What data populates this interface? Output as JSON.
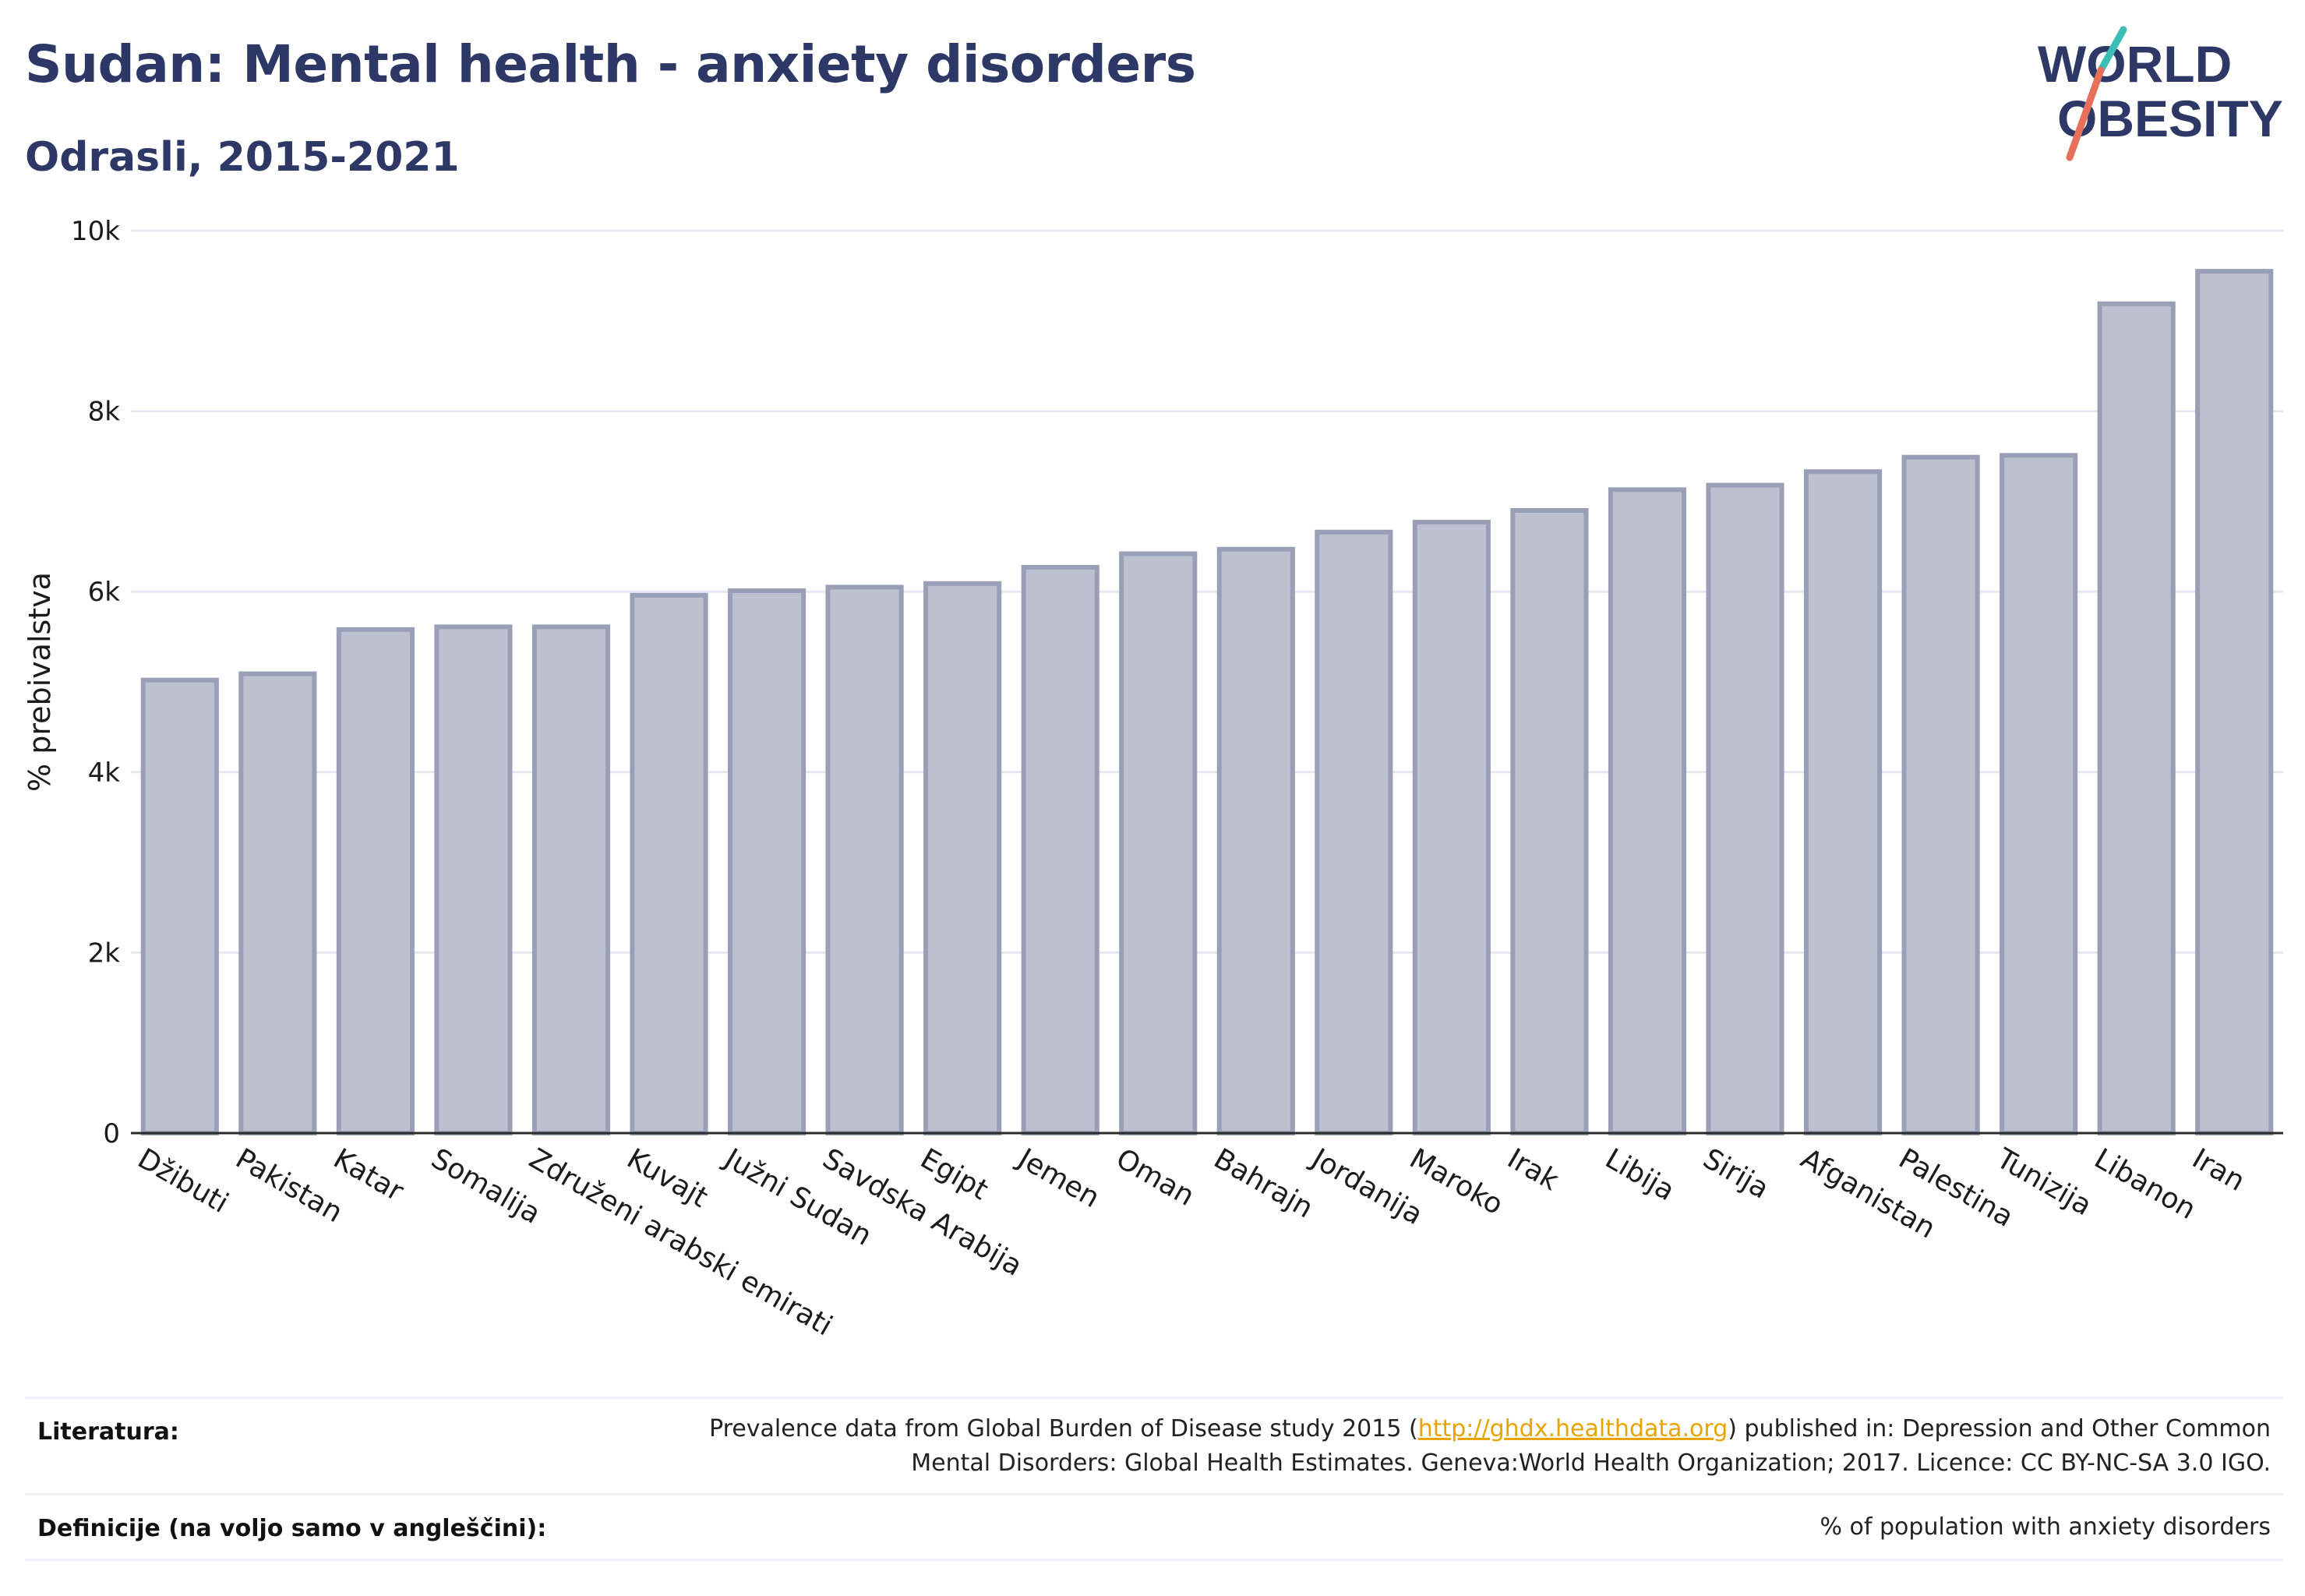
{
  "header": {
    "title": "Sudan: Mental health - anxiety disorders",
    "subtitle": "Odrasli, 2015-2021"
  },
  "logo": {
    "line1": "WORLD",
    "line2": "OBESITY",
    "colors": {
      "text": "#2d3866",
      "slash_top": "#3cbdb5",
      "slash_bottom": "#e8705a"
    }
  },
  "chart_data": {
    "type": "bar",
    "ylabel": "% prebivalstva",
    "ylim": [
      0,
      10000
    ],
    "yticks": [
      0,
      2000,
      4000,
      6000,
      8000,
      10000
    ],
    "ytick_labels": [
      "0",
      "2k",
      "4k",
      "6k",
      "8k",
      "10k"
    ],
    "grid": true,
    "bar_fill": "#bcc0cf",
    "bar_stroke": "#9a9fb8",
    "categories": [
      "Džibuti",
      "Pakistan",
      "Katar",
      "Somalija",
      "Združeni arabski emirati",
      "Kuvajt",
      "Južni Sudan",
      "Savdska Arabija",
      "Egipt",
      "Jemen",
      "Oman",
      "Bahrajn",
      "Jordanija",
      "Maroko",
      "Irak",
      "Libija",
      "Sirija",
      "Afganistan",
      "Palestina",
      "Tunizija",
      "Libanon",
      "Iran"
    ],
    "values": [
      5020,
      5090,
      5580,
      5610,
      5610,
      5960,
      6010,
      6050,
      6090,
      6270,
      6420,
      6470,
      6660,
      6770,
      6900,
      7130,
      7180,
      7330,
      7490,
      7510,
      9190,
      9550
    ]
  },
  "footer": {
    "references_label": "Literatura:",
    "references_text_before": "Prevalence data from Global Burden of Disease study 2015 (",
    "references_link": "http://ghdx.healthdata.org",
    "references_text_after": ") published in: Depression and Other Common",
    "references_text_line2": "Mental Disorders: Global Health Estimates. Geneva:World Health Organization; 2017. Licence: CC BY-NC-SA 3.0 IGO.",
    "definitions_label": "Definicije (na voljo samo v angleščini):",
    "definitions_text": "% of population with anxiety disorders"
  }
}
